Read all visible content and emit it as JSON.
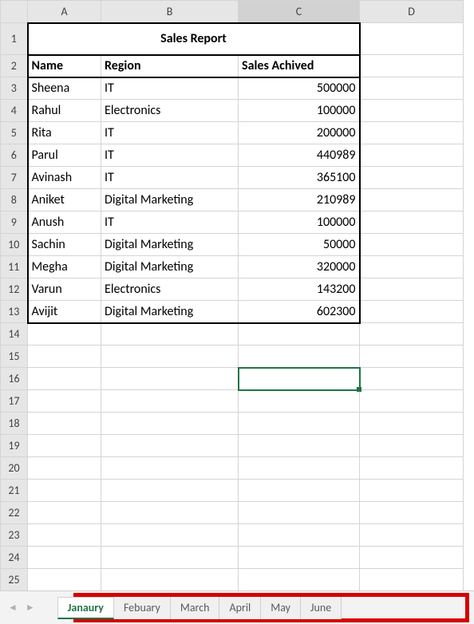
{
  "colors": {
    "accent": "#217346",
    "grid_border": "#d4d4d4",
    "header_bg": "#e6e6e6",
    "highlight_box": "#d60000",
    "data_border": "#000000"
  },
  "columns": [
    "A",
    "B",
    "C",
    "D"
  ],
  "selected_column_header": "C",
  "selected_cell": "C16",
  "title": "Sales Report",
  "table": {
    "headers": {
      "name": "Name",
      "region": "Region",
      "sales": "Sales Achived"
    },
    "rows": [
      {
        "name": "Sheena",
        "region": "IT",
        "sales": 500000
      },
      {
        "name": "Rahul",
        "region": "Electronics",
        "sales": 100000
      },
      {
        "name": "Rita",
        "region": "IT",
        "sales": 200000
      },
      {
        "name": "Parul",
        "region": "IT",
        "sales": 440989
      },
      {
        "name": "Avinash",
        "region": "IT",
        "sales": 365100
      },
      {
        "name": "Aniket",
        "region": "Digital Marketing",
        "sales": 210989
      },
      {
        "name": "Anush",
        "region": "IT",
        "sales": 100000
      },
      {
        "name": "Sachin",
        "region": "Digital Marketing",
        "sales": 50000
      },
      {
        "name": "Megha",
        "region": "Digital Marketing",
        "sales": 320000
      },
      {
        "name": "Varun",
        "region": "Electronics",
        "sales": 143200
      },
      {
        "name": "Avijit",
        "region": "Digital Marketing",
        "sales": 602300
      }
    ]
  },
  "empty_rows_after": 12,
  "sheet_tabs": {
    "active_index": 0,
    "tabs": [
      "Janaury",
      "Febuary",
      "March",
      "April",
      "May",
      "June"
    ]
  },
  "nav": {
    "prev": "◄",
    "next": "►"
  }
}
